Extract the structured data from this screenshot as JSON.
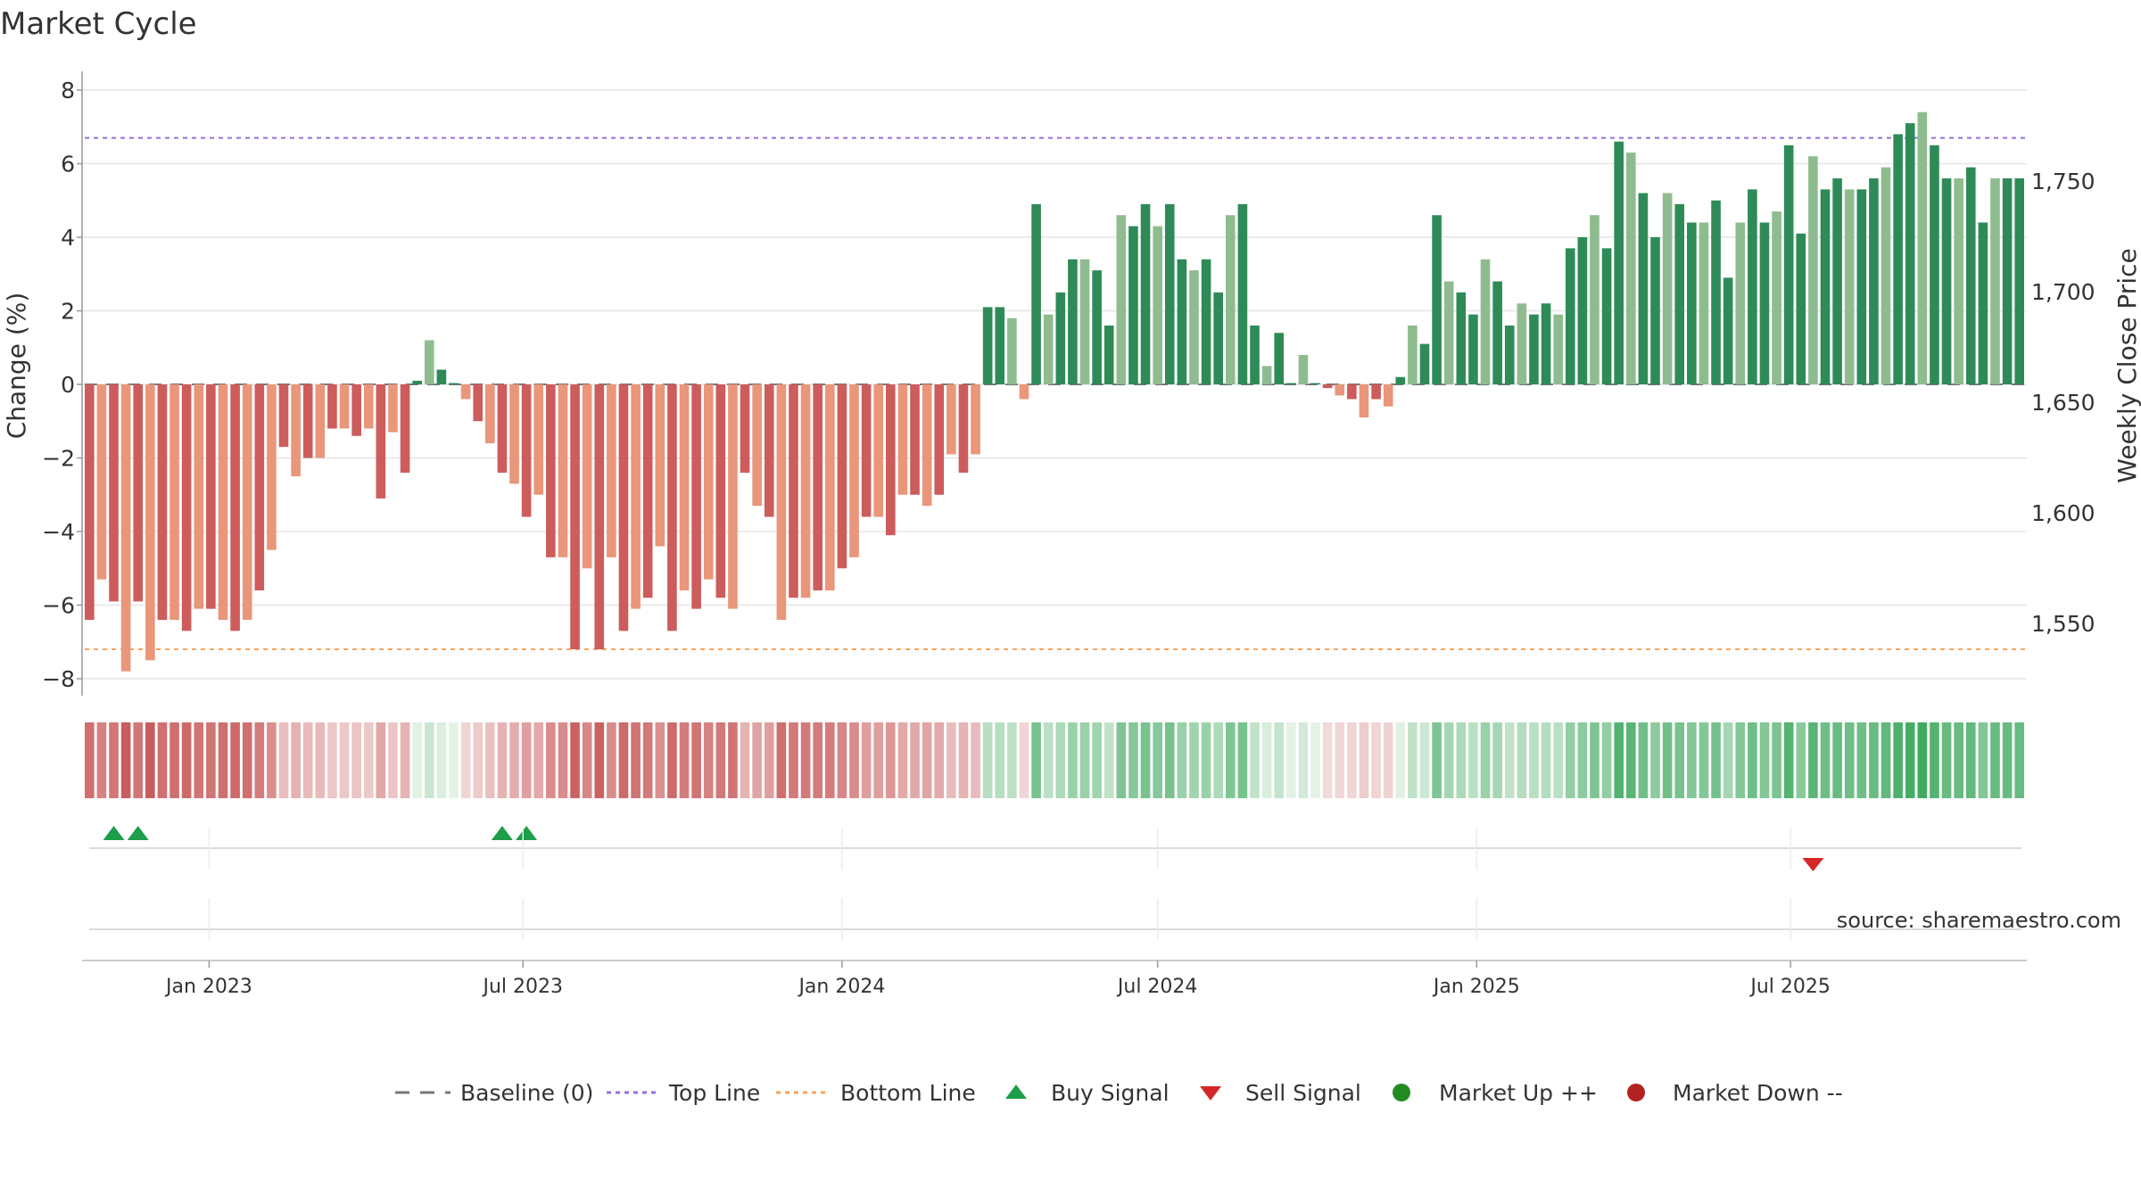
{
  "chart_data": {
    "type": "bar",
    "title": "Market Cycle",
    "ylabel_left": "Change (%)",
    "ylabel_right": "Weekly Close Price",
    "y_left_range": [
      -8.5,
      8.5
    ],
    "y_left_ticks": [
      "8",
      "6",
      "4",
      "2",
      "0",
      "−2",
      "−4",
      "−6",
      "−8"
    ],
    "y_right_ticks": [
      "1,750",
      "1,700",
      "1,650",
      "1,600",
      "1,550"
    ],
    "x_tick_labels": [
      "Jan 2023",
      "Jul 2023",
      "Jan 2024",
      "Jul 2024",
      "Jan 2025",
      "Jul 2025"
    ],
    "reference_lines": {
      "baseline": 0,
      "top_line": 6.7,
      "bottom_line": -7.2
    },
    "legend_position": "bottom-center",
    "legend": {
      "baseline": "Baseline (0)",
      "top": "Top Line",
      "bottom": "Bottom Line",
      "buy": "Buy Signal",
      "sell": "Sell Signal",
      "up": "Market Up ++",
      "down": "Market Down --"
    },
    "source": "source: sharemaestro.com",
    "colors": {
      "neg_dark": "#cd5c5c",
      "neg_light": "#e9967a",
      "pos_dark": "#2e8b57",
      "pos_light": "#8fbc8f",
      "top_line": "#9370db",
      "bottom_line": "#f4a460",
      "buy": "#1e9e4a",
      "sell": "#d62728",
      "market_up": "#228b22",
      "market_down": "#b22222"
    },
    "series": [
      {
        "name": "Change (%)",
        "values": [
          -6.4,
          -5.3,
          -5.9,
          -7.8,
          -5.9,
          -7.5,
          -6.4,
          -6.4,
          -6.7,
          -6.1,
          -6.1,
          -6.4,
          -6.7,
          -6.4,
          -5.6,
          -4.5,
          -1.7,
          -2.5,
          -2.0,
          -2.0,
          -1.2,
          -1.2,
          -1.4,
          -1.2,
          -3.1,
          -1.3,
          -2.4,
          0.1,
          1.2,
          0.4,
          0.0,
          -0.4,
          -1.0,
          -1.6,
          -2.4,
          -2.7,
          -3.6,
          -3.0,
          -4.7,
          -4.7,
          -7.2,
          -5.0,
          -7.2,
          -4.7,
          -6.7,
          -6.1,
          -5.8,
          -4.4,
          -6.7,
          -5.6,
          -6.1,
          -5.3,
          -5.8,
          -6.1,
          -2.4,
          -3.3,
          -3.6,
          -6.4,
          -5.8,
          -5.8,
          -5.6,
          -5.6,
          -5.0,
          -4.7,
          -3.6,
          -3.6,
          -4.1,
          -3.0,
          -3.0,
          -3.3,
          -3.0,
          -1.9,
          -2.4,
          -1.9,
          2.1,
          2.1,
          1.8,
          -0.4,
          4.9,
          1.9,
          2.5,
          3.4,
          3.4,
          3.1,
          1.6,
          4.6,
          4.3,
          4.9,
          4.3,
          4.9,
          3.4,
          3.1,
          3.4,
          2.5,
          4.6,
          4.9,
          1.6,
          0.5,
          1.4,
          0.0,
          0.8,
          0.0,
          -0.1,
          -0.3,
          -0.4,
          -0.9,
          -0.4,
          -0.6,
          0.2,
          1.6,
          1.1,
          4.6,
          2.8,
          2.5,
          1.9,
          3.4,
          2.8,
          1.6,
          2.2,
          1.9,
          2.2,
          1.9,
          3.7,
          4.0,
          4.6,
          3.7,
          6.6,
          6.3,
          5.2,
          4.0,
          5.2,
          4.9,
          4.4,
          4.4,
          5.0,
          2.9,
          4.4,
          5.3,
          4.4,
          4.7,
          6.5,
          4.1,
          6.2,
          5.3,
          5.6,
          5.3,
          5.3,
          5.6,
          5.9,
          6.8,
          7.1,
          7.4,
          6.5,
          5.6,
          5.6,
          5.9,
          4.4,
          5.6,
          5.6,
          5.6
        ]
      }
    ],
    "buy_signals": [
      "2022-11-07",
      "2022-11-21",
      "2023-06-19",
      "2023-07-03"
    ],
    "sell_signals": [
      "2025-07-14"
    ]
  }
}
